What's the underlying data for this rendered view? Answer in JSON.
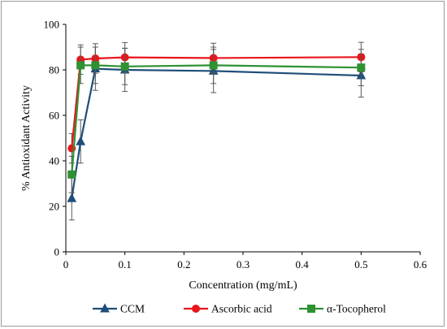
{
  "chart_data": {
    "type": "line",
    "xlabel": "Concentration (mg/mL)",
    "ylabel": "% Antioxidant Activity",
    "xlim": [
      0,
      0.6
    ],
    "ylim": [
      0,
      100
    ],
    "xticks": [
      0,
      0.1,
      0.2,
      0.3,
      0.4,
      0.5,
      0.6
    ],
    "xtick_labels": [
      "0",
      "0.1",
      "0.2",
      "0.3",
      "0.4",
      "0.5",
      "0.6"
    ],
    "yticks": [
      0,
      20,
      40,
      60,
      80,
      100
    ],
    "ytick_labels": [
      "0",
      "20",
      "40",
      "60",
      "80",
      "100"
    ],
    "grid": false,
    "legend_position": "bottom",
    "series": [
      {
        "name": "CCM",
        "color": "#1f4e79",
        "marker": "triangle",
        "x": [
          0.01,
          0.025,
          0.05,
          0.1,
          0.25,
          0.5
        ],
        "y": [
          23.5,
          48.5,
          80.5,
          80,
          79.5,
          77.5
        ],
        "err": [
          9.5,
          9.5,
          9.5,
          9.5,
          9.5,
          9.5
        ]
      },
      {
        "name": "Ascorbic acid",
        "color": "#e8161c",
        "marker": "circle",
        "x": [
          0.01,
          0.025,
          0.05,
          0.1,
          0.25,
          0.5
        ],
        "y": [
          45.5,
          84.5,
          85,
          85.5,
          85.2,
          85.6
        ],
        "err": [
          6.5,
          6.5,
          6.5,
          6.5,
          6.5,
          6.5
        ]
      },
      {
        "name": "α-Tocopherol",
        "color": "#2f9132",
        "marker": "square",
        "x": [
          0.01,
          0.025,
          0.05,
          0.1,
          0.25,
          0.5
        ],
        "y": [
          34,
          82,
          82,
          81.5,
          82,
          81
        ],
        "err": [
          8,
          8,
          8,
          8,
          8,
          8
        ]
      }
    ]
  }
}
